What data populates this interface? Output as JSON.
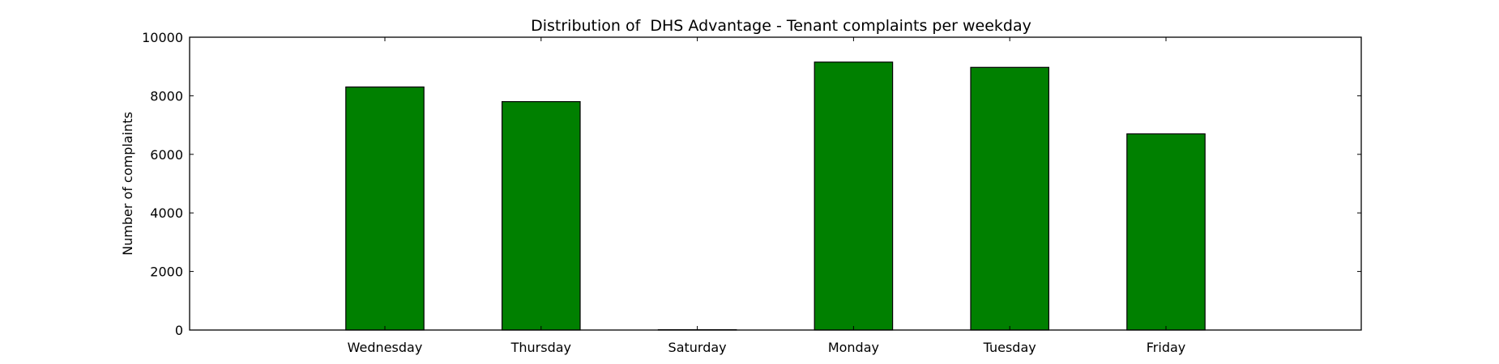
{
  "chart_data": {
    "type": "bar",
    "title": "Distribution of  DHS Advantage - Tenant complaints per weekday",
    "xlabel": "",
    "ylabel": "Number of complaints",
    "categories": [
      "Wednesday",
      "Thursday",
      "Saturday",
      "Monday",
      "Tuesday",
      "Friday"
    ],
    "values": [
      8300,
      7800,
      10,
      9150,
      8970,
      6700
    ],
    "ylim": [
      0,
      10000
    ],
    "yticks": [
      0,
      2000,
      4000,
      6000,
      8000,
      10000
    ],
    "ytick_labels": [
      "0",
      "2000",
      "4000",
      "6000",
      "8000",
      "10000"
    ],
    "bar_color": "#008000",
    "grid": false,
    "legend": "none"
  }
}
